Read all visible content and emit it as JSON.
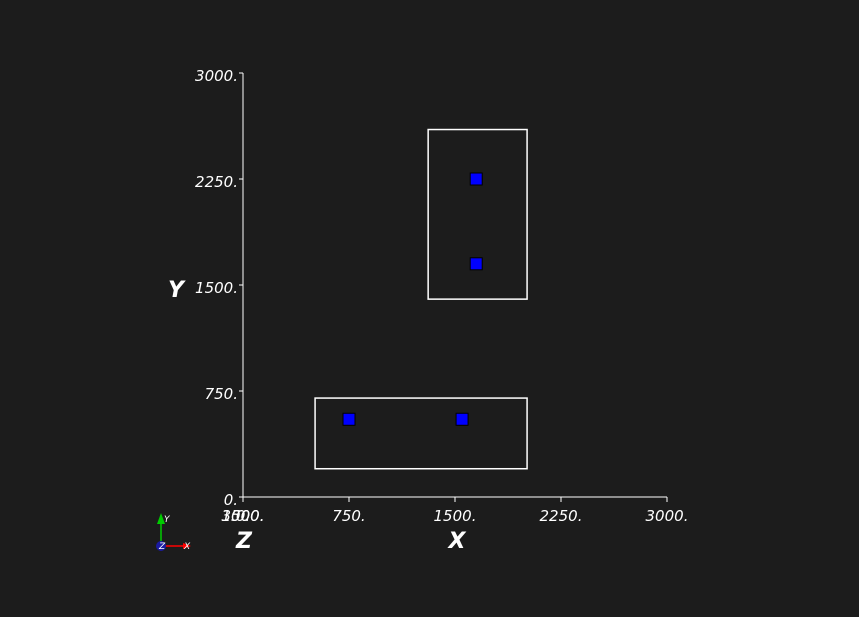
{
  "chart_data": {
    "type": "scatter",
    "title": "",
    "xlabel": "X",
    "ylabel": "Y",
    "zlabel": "Z",
    "xlim": [
      0,
      3000
    ],
    "ylim": [
      0,
      3000
    ],
    "x_ticks": [
      "0.",
      "750.",
      "1500.",
      "2250.",
      "3000."
    ],
    "y_ticks": [
      "0.",
      "750.",
      "1500.",
      "2250.",
      "3000."
    ],
    "z_ticks": [
      "0.",
      "1500.",
      "3000."
    ],
    "grid": false,
    "background": "#1c1c1c",
    "series": [
      {
        "marker": "square",
        "color": "#0000ff",
        "points": [
          {
            "x": 750,
            "y": 550
          },
          {
            "x": 1550,
            "y": 550
          },
          {
            "x": 1650,
            "y": 1650
          },
          {
            "x": 1650,
            "y": 2250
          }
        ]
      }
    ],
    "rectangles": [
      {
        "x0": 510,
        "x1": 2010,
        "y0": 200,
        "y1": 700,
        "color": "#ffffff"
      },
      {
        "x0": 1310,
        "x1": 2010,
        "y0": 1400,
        "y1": 2600,
        "color": "#ffffff"
      }
    ]
  },
  "orientation_triad": {
    "x_label": "X",
    "y_label": "Y",
    "z_label": "Z",
    "x_color": "#ff0000",
    "y_color": "#00cc00",
    "z_color": "#1a1aa0"
  }
}
